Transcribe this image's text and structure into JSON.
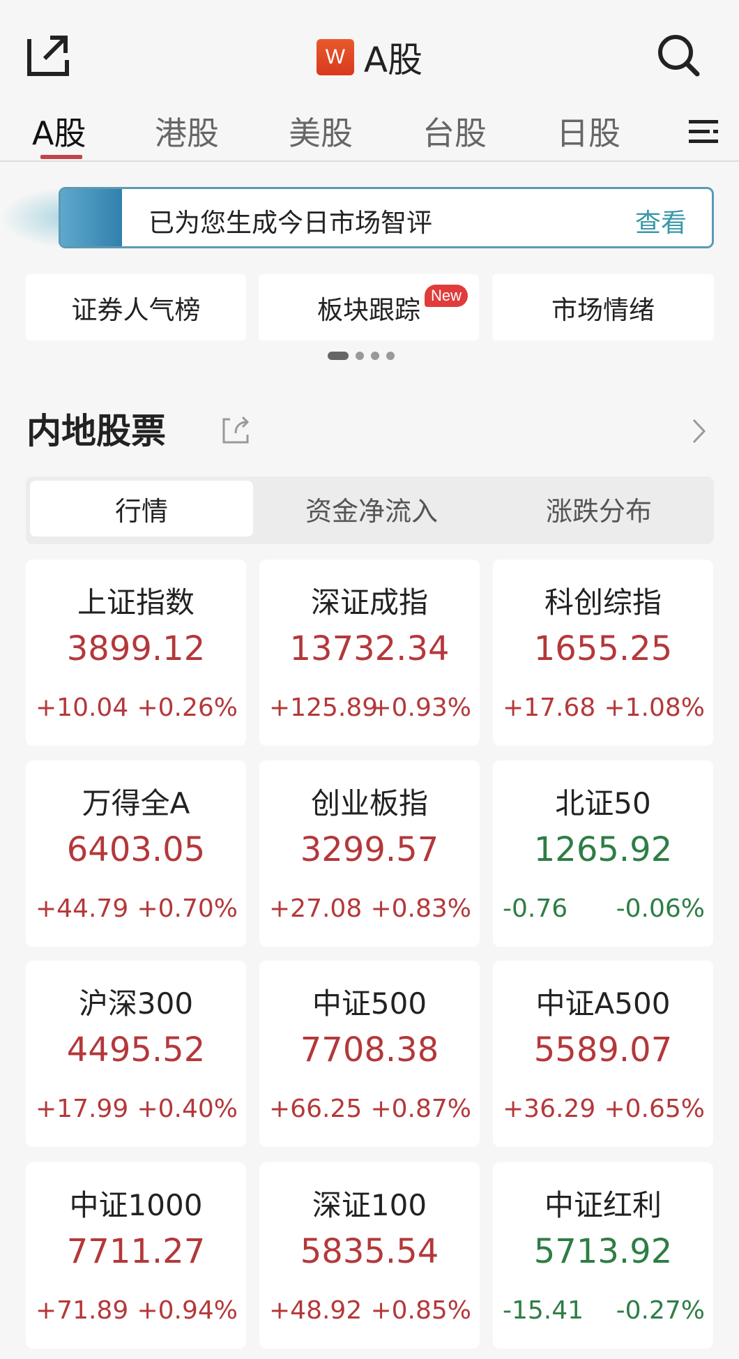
{
  "header": {
    "title": "A股",
    "logo_text": "W",
    "icons": {
      "left": "share-icon",
      "right": "search-icon"
    }
  },
  "tabs": [
    {
      "label": "A股",
      "active": true
    },
    {
      "label": "港股"
    },
    {
      "label": "美股"
    },
    {
      "label": "台股"
    },
    {
      "label": "日股"
    }
  ],
  "banner": {
    "text": "已为您生成今日市场智评",
    "link": "查看"
  },
  "quick": [
    {
      "label": "证券人气榜"
    },
    {
      "label": "板块跟踪",
      "badge": "New"
    },
    {
      "label": "市场情绪"
    }
  ],
  "carousel": {
    "pages": 4,
    "current": 1
  },
  "section": {
    "title": "内地股票"
  },
  "segments": [
    {
      "label": "行情",
      "active": true
    },
    {
      "label": "资金净流入"
    },
    {
      "label": "涨跌分布"
    }
  ],
  "colors": {
    "up": "#b4383a",
    "down": "#2e7d45",
    "accent": "#c0444a",
    "link": "#3a98a8"
  },
  "indices": [
    {
      "name": "上证指数",
      "value": "3899.12",
      "change": "+10.04",
      "pct": "+0.26%",
      "dir": "up"
    },
    {
      "name": "深证成指",
      "value": "13732.34",
      "change": "+125.89",
      "pct": "+0.93%",
      "dir": "up"
    },
    {
      "name": "科创综指",
      "value": "1655.25",
      "change": "+17.68",
      "pct": "+1.08%",
      "dir": "up"
    },
    {
      "name": "万得全A",
      "value": "6403.05",
      "change": "+44.79",
      "pct": "+0.70%",
      "dir": "up"
    },
    {
      "name": "创业板指",
      "value": "3299.57",
      "change": "+27.08",
      "pct": "+0.83%",
      "dir": "up"
    },
    {
      "name": "北证50",
      "value": "1265.92",
      "change": "-0.76",
      "pct": "-0.06%",
      "dir": "down"
    },
    {
      "name": "沪深300",
      "value": "4495.52",
      "change": "+17.99",
      "pct": "+0.40%",
      "dir": "up"
    },
    {
      "name": "中证500",
      "value": "7708.38",
      "change": "+66.25",
      "pct": "+0.87%",
      "dir": "up"
    },
    {
      "name": "中证A500",
      "value": "5589.07",
      "change": "+36.29",
      "pct": "+0.65%",
      "dir": "up"
    },
    {
      "name": "中证1000",
      "value": "7711.27",
      "change": "+71.89",
      "pct": "+0.94%",
      "dir": "up"
    },
    {
      "name": "深证100",
      "value": "5835.54",
      "change": "+48.92",
      "pct": "+0.85%",
      "dir": "up"
    },
    {
      "name": "中证红利",
      "value": "5713.92",
      "change": "-15.41",
      "pct": "-0.27%",
      "dir": "down"
    }
  ]
}
